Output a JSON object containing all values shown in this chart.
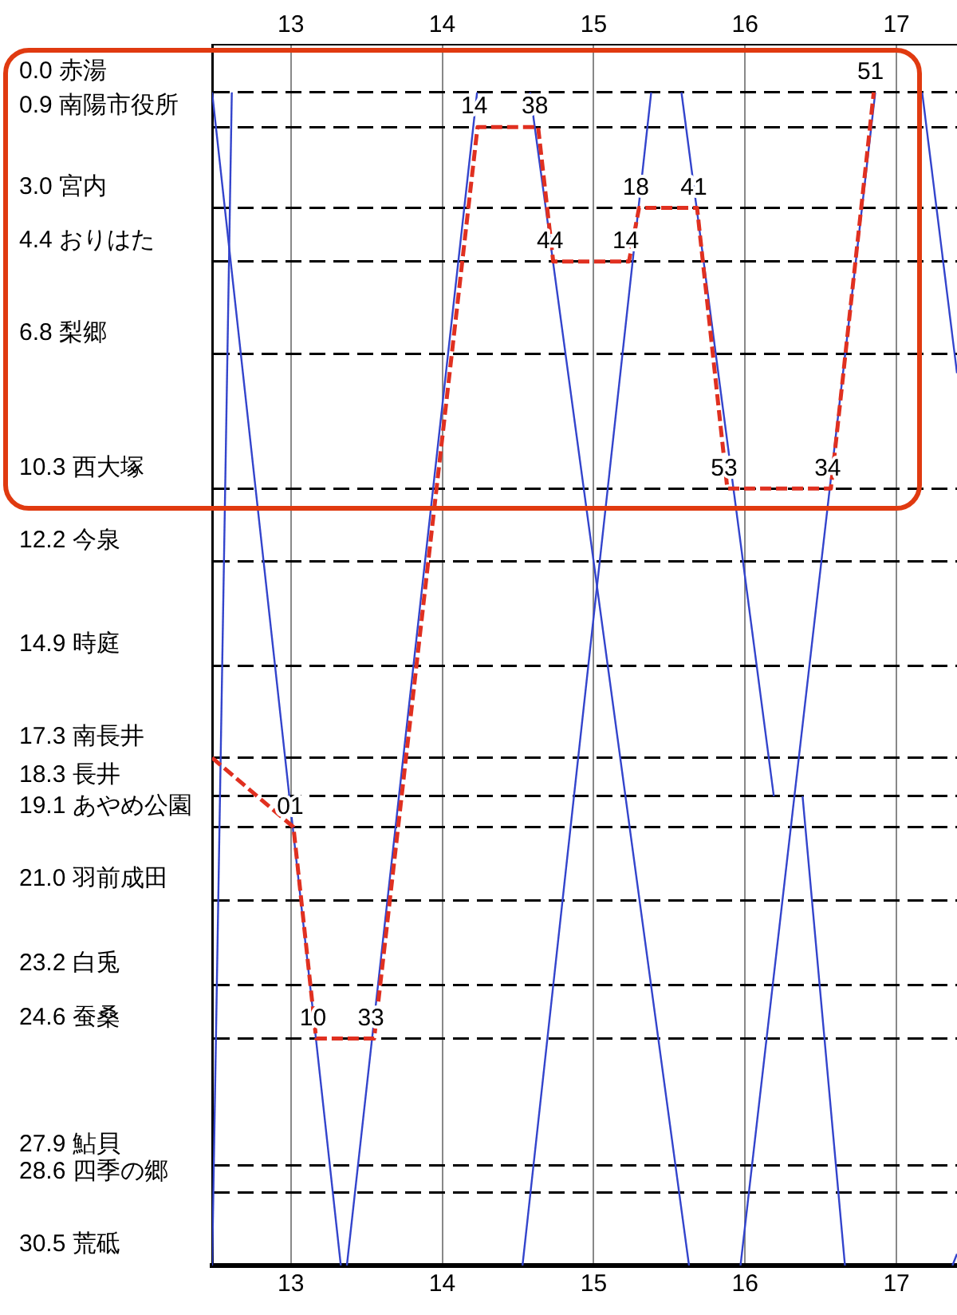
{
  "chart_data": {
    "type": "line",
    "marker": "none",
    "grid": true,
    "legend": false,
    "xlim": [
      12.48,
      17.4
    ],
    "xticks": [
      13,
      14,
      15,
      16,
      17
    ],
    "x2lim": [
      12.48,
      17.4
    ],
    "x2ticks": [
      13,
      14,
      15,
      16,
      17
    ],
    "ylim": [
      30.5,
      -1.24
    ],
    "yticks": [
      {
        "value": 0,
        "label": "0.0 赤湯"
      },
      {
        "value": 0.9,
        "label": "0.9 南陽市役所"
      },
      {
        "value": 3.0,
        "label": "3.0 宮内"
      },
      {
        "value": 4.4,
        "label": "4.4 おりはた"
      },
      {
        "value": 6.8,
        "label": "6.8 梨郷"
      },
      {
        "value": 10.3,
        "label": "10.3 西大塚"
      },
      {
        "value": 12.2,
        "label": "12.2 今泉"
      },
      {
        "value": 14.9,
        "label": "14.9 時庭"
      },
      {
        "value": 17.3,
        "label": "17.3 南長井"
      },
      {
        "value": 18.3,
        "label": "18.3 長井"
      },
      {
        "value": 19.1,
        "label": "19.1 あやめ公園"
      },
      {
        "value": 21.0,
        "label": "21.0 羽前成田"
      },
      {
        "value": 23.2,
        "label": "23.2 白兎"
      },
      {
        "value": 24.6,
        "label": "24.6 蚕桑"
      },
      {
        "value": 27.9,
        "label": "27.9 鮎貝"
      },
      {
        "value": 28.6,
        "label": "28.6 四季の郷"
      },
      {
        "value": 30.5,
        "label": "30.5 荒砥"
      }
    ],
    "series": [
      {
        "color": "#3344cc",
        "line_style": "solid",
        "x": [
          12.48,
          13.33
        ],
        "values": [
          0,
          30.5
        ]
      },
      {
        "color": "#3344cc",
        "line_style": "solid",
        "x": [
          12.61,
          12.48
        ],
        "values": [
          0,
          30.5
        ]
      },
      {
        "color": "#3344cc",
        "line_style": "solid",
        "x": [
          13.37,
          14.23
        ],
        "values": [
          30.5,
          0
        ]
      },
      {
        "color": "#3344cc",
        "line_style": "solid",
        "x": [
          14.58,
          15.63
        ],
        "values": [
          0,
          30.5
        ]
      },
      {
        "color": "#3344cc",
        "line_style": "solid",
        "x": [
          14.53,
          15.38
        ],
        "values": [
          30.5,
          0
        ]
      },
      {
        "color": "#3344cc",
        "line_style": "solid",
        "x": [
          15.58,
          16.19
        ],
        "values": [
          0,
          18.3
        ]
      },
      {
        "color": "#3344cc",
        "line_style": "solid",
        "x": [
          16.38,
          16.66
        ],
        "values": [
          18.3,
          30.5
        ]
      },
      {
        "color": "#3344cc",
        "line_style": "solid",
        "x": [
          15.97,
          16.86
        ],
        "values": [
          30.5,
          0
        ]
      },
      {
        "color": "#3344cc",
        "line_style": "solid",
        "x": [
          17.17,
          17.4
        ],
        "values": [
          0,
          7.3
        ]
      },
      {
        "color": "#3344cc",
        "line_style": "solid",
        "x": [
          17.37,
          17.4
        ],
        "values": [
          30.5,
          30.2
        ]
      },
      {
        "color": "#e03020",
        "line_style": "dashed",
        "x": [
          12.48,
          13.017,
          13.167,
          13.55,
          14.233,
          14.633,
          14.733,
          15.233,
          15.3,
          15.683,
          15.883,
          16.567,
          16.85
        ],
        "values": [
          17.3,
          19.1,
          24.6,
          24.6,
          0.9,
          0.9,
          4.4,
          4.4,
          3.0,
          3.0,
          10.3,
          10.3,
          0
        ]
      }
    ],
    "annotations": [
      {
        "text": "01",
        "x": 13.017,
        "y": 19.1
      },
      {
        "text": "10",
        "x": 13.167,
        "y": 24.6
      },
      {
        "text": "33",
        "x": 13.55,
        "y": 24.6
      },
      {
        "text": "14",
        "x": 14.233,
        "y": 0.9
      },
      {
        "text": "38",
        "x": 14.633,
        "y": 0.9
      },
      {
        "text": "44",
        "x": 14.733,
        "y": 4.4
      },
      {
        "text": "14",
        "x": 15.233,
        "y": 4.4
      },
      {
        "text": "18",
        "x": 15.3,
        "y": 3.0
      },
      {
        "text": "41",
        "x": 15.683,
        "y": 3.0
      },
      {
        "text": "53",
        "x": 15.883,
        "y": 10.3
      },
      {
        "text": "34",
        "x": 16.567,
        "y": 10.3
      },
      {
        "text": "51",
        "x": 16.85,
        "y": 0
      }
    ]
  }
}
